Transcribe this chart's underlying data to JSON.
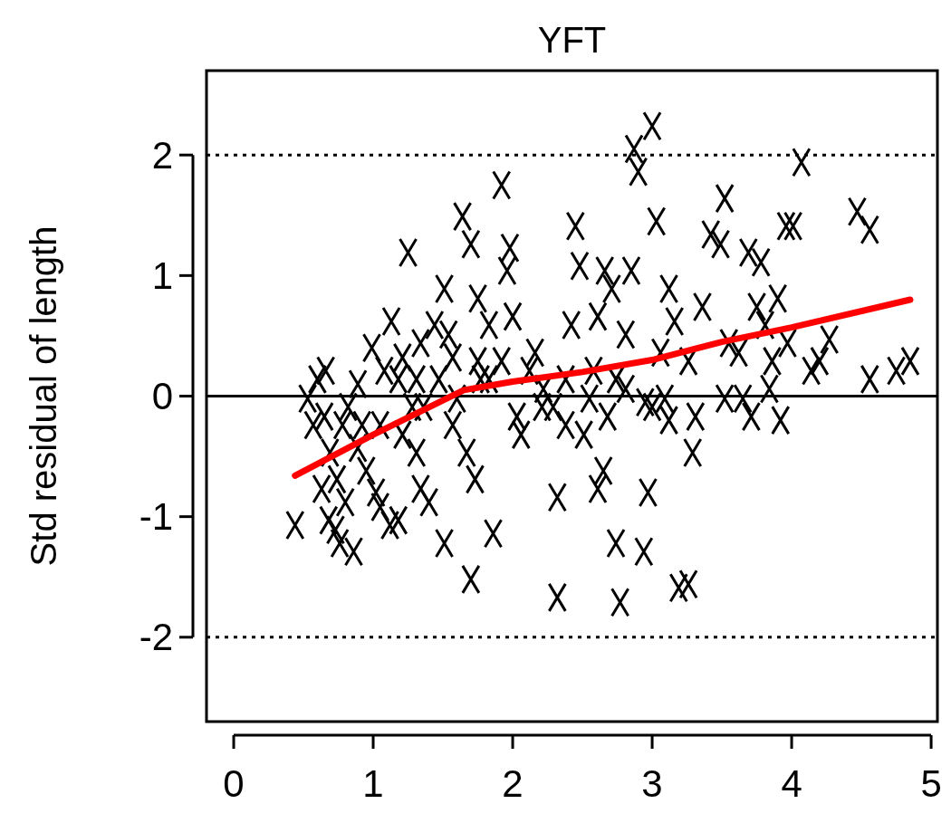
{
  "chart_data": {
    "type": "scatter",
    "title": "YFT",
    "ylabel": "Std residual of length",
    "xlim": [
      -0.195,
      5.045
    ],
    "ylim": [
      -2.7,
      2.7
    ],
    "xticks": [
      0,
      1,
      2,
      3,
      4,
      5
    ],
    "yticks": [
      -2,
      -1,
      0,
      1,
      2
    ],
    "grid": false,
    "ref_lines": [
      {
        "axis": "y",
        "value": 2,
        "color": "#000000",
        "line_style": "dotted"
      },
      {
        "axis": "y",
        "value": -2,
        "color": "#000000",
        "line_style": "dotted"
      },
      {
        "axis": "y",
        "value": 0,
        "color": "#000000",
        "line_style": "solid"
      }
    ],
    "series": [
      {
        "color": "#000000",
        "marker": "cross",
        "x": [
          0.44,
          0.6,
          0.66,
          0.65,
          0.69,
          0.63,
          0.68,
          0.73,
          0.76,
          0.86,
          0.78,
          0.74,
          0.82,
          0.89,
          0.92,
          0.99,
          0.95,
          1.02,
          1.05,
          1.12,
          1.18,
          1.08,
          1.13,
          1.18,
          1.25,
          1.21,
          1.28,
          1.31,
          1.34,
          1.4,
          1.34,
          1.44,
          1.51,
          1.47,
          1.54,
          1.51,
          1.57,
          1.64,
          1.7,
          1.7,
          1.75,
          1.73,
          1.67,
          1.83,
          1.86,
          1.77,
          1.92,
          1.96,
          1.98,
          2.0,
          1.92,
          2.03,
          2.06,
          2.16,
          2.22,
          2.29,
          2.32,
          2.32,
          2.42,
          2.45,
          2.48,
          2.38,
          2.51,
          2.58,
          2.61,
          2.61,
          2.66,
          2.68,
          2.71,
          2.74,
          2.77,
          2.81,
          2.85,
          2.87,
          2.9,
          2.94,
          2.95,
          2.97,
          3.0,
          3.03,
          3.0,
          3.06,
          3.12,
          3.12,
          3.16,
          3.19,
          3.26,
          3.29,
          3.31,
          3.36,
          3.42,
          3.49,
          3.52,
          3.52,
          3.55,
          3.62,
          3.65,
          3.69,
          3.71,
          3.75,
          3.78,
          3.81,
          3.84,
          3.86,
          3.9,
          3.92,
          3.96,
          3.97,
          4.01,
          4.07,
          4.14,
          4.2,
          4.27,
          4.47,
          4.56,
          4.56,
          4.75,
          4.85,
          0.53,
          0.57,
          0.8,
          0.89,
          1.05,
          1.21,
          1.31,
          1.36,
          1.57,
          1.6,
          1.75,
          1.83,
          2.12,
          2.21,
          2.38,
          2.55,
          2.65,
          2.74,
          2.81,
          3.09,
          3.26
        ],
        "values": [
          -1.07,
          0.14,
          0.21,
          -0.17,
          -0.47,
          -0.77,
          -1.03,
          -1.11,
          -1.22,
          -1.29,
          -0.24,
          -0.69,
          -0.09,
          -0.43,
          -0.24,
          0.4,
          -0.62,
          -0.8,
          -0.92,
          -1.07,
          -1.03,
          0.21,
          0.62,
          0.14,
          1.19,
          -0.32,
          -0.09,
          -0.47,
          -0.77,
          -0.88,
          0.44,
          0.59,
          0.89,
          0.14,
          0.51,
          -1.22,
          -0.24,
          1.49,
          1.26,
          -1.52,
          0.81,
          -0.69,
          -0.47,
          0.59,
          -1.14,
          0.14,
          1.75,
          1.04,
          1.23,
          0.66,
          0.29,
          -0.17,
          -0.32,
          0.36,
          0.06,
          -0.09,
          -0.84,
          -1.67,
          0.59,
          1.41,
          1.08,
          0.14,
          -0.32,
          0.21,
          0.66,
          -0.77,
          1.04,
          -0.17,
          0.89,
          -1.22,
          -1.71,
          0.51,
          1.04,
          2.05,
          1.86,
          -1.29,
          -0.05,
          -0.8,
          2.24,
          1.45,
          -0.09,
          0.36,
          0.89,
          -0.2,
          0.62,
          -1.59,
          -1.56,
          -0.47,
          -0.17,
          0.74,
          1.34,
          1.26,
          -0.02,
          1.64,
          0.44,
          0.36,
          -0.02,
          1.19,
          -0.17,
          0.74,
          1.11,
          0.59,
          0.06,
          0.29,
          0.81,
          -0.2,
          1.41,
          0.44,
          1.41,
          1.94,
          0.21,
          0.29,
          0.47,
          1.53,
          1.38,
          0.14,
          0.21,
          0.29,
          -0.02,
          -0.24,
          -0.88,
          0.1,
          -0.24,
          0.32,
          0.14,
          -0.09,
          0.32,
          -0.02,
          0.29,
          0.14,
          0.21,
          -0.09,
          -0.24,
          -0.02,
          -0.62,
          0.14,
          0.06,
          -0.02,
          0.29
        ]
      },
      {
        "type": "line",
        "color": "#ff0000",
        "x": [
          0.44,
          1.0,
          1.65,
          2.0,
          2.5,
          3.0,
          3.5,
          4.0,
          4.85
        ],
        "values": [
          -0.66,
          -0.32,
          0.05,
          0.12,
          0.2,
          0.3,
          0.45,
          0.57,
          0.8
        ]
      }
    ]
  }
}
